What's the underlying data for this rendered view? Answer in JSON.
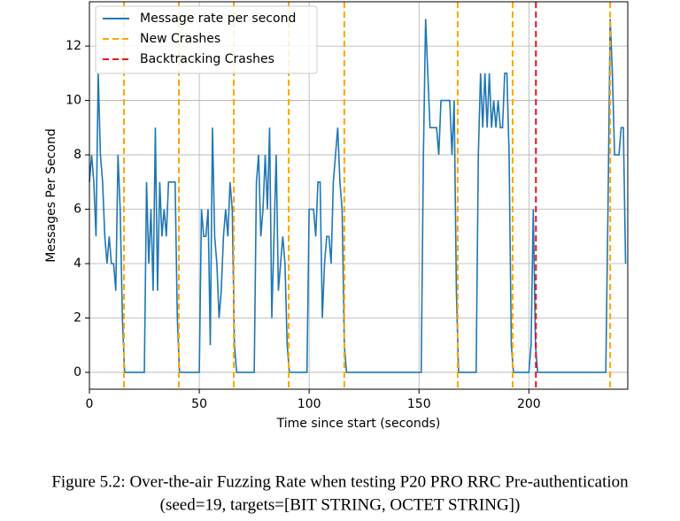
{
  "chart_data": {
    "type": "line",
    "xlabel": "Time since start (seconds)",
    "ylabel": "Messages Per Second",
    "x": [
      0,
      1,
      2,
      3,
      4,
      5,
      6,
      7,
      8,
      9,
      10,
      11,
      12,
      13,
      14,
      15,
      16,
      25,
      26,
      27,
      28,
      29,
      30,
      31,
      32,
      33,
      34,
      35,
      36,
      37,
      38,
      39,
      40,
      41,
      50,
      51,
      52,
      53,
      54,
      55,
      56,
      57,
      58,
      59,
      60,
      61,
      62,
      63,
      64,
      65,
      66,
      67,
      75,
      76,
      77,
      78,
      79,
      80,
      81,
      82,
      83,
      84,
      85,
      86,
      87,
      88,
      89,
      90,
      91,
      99,
      100,
      101,
      102,
      103,
      104,
      105,
      106,
      107,
      108,
      109,
      110,
      111,
      112,
      113,
      114,
      115,
      116,
      117,
      151,
      152,
      153,
      154,
      155,
      156,
      157,
      158,
      159,
      160,
      161,
      162,
      163,
      164,
      165,
      166,
      167,
      168,
      176,
      177,
      178,
      179,
      180,
      181,
      182,
      183,
      184,
      185,
      186,
      187,
      188,
      189,
      190,
      191,
      192,
      193,
      200,
      201,
      202,
      203,
      204,
      235,
      236,
      237,
      238,
      239,
      240,
      241,
      242,
      243,
      244
    ],
    "series": [
      {
        "name": "Message rate per second",
        "color": "#1f77b4",
        "values": [
          7,
          8,
          7,
          5,
          11,
          8,
          7,
          5,
          4,
          5,
          4,
          4,
          3,
          8,
          6,
          2,
          0,
          0,
          7,
          4,
          6,
          3,
          9,
          3,
          7,
          5,
          6,
          5,
          7,
          7,
          7,
          7,
          2,
          0,
          0,
          6,
          5,
          5,
          6,
          1,
          9,
          5,
          4,
          2,
          3,
          5,
          6,
          5,
          7,
          6,
          1,
          0,
          0,
          7,
          8,
          5,
          6,
          8,
          6,
          9,
          2,
          5,
          8,
          3,
          4,
          5,
          4,
          1,
          0,
          0,
          6,
          6,
          6,
          5,
          7,
          7,
          2,
          4,
          5,
          5,
          4,
          7,
          8,
          9,
          7,
          6,
          1,
          0,
          0,
          8,
          13,
          11,
          9,
          9,
          9,
          9,
          8,
          10,
          10,
          10,
          10,
          10,
          8,
          10,
          3,
          0,
          0,
          8,
          11,
          9,
          11,
          9,
          11,
          9,
          10,
          9,
          10,
          9,
          9,
          11,
          11,
          8,
          1,
          0,
          0,
          1,
          6,
          1,
          0,
          0,
          6,
          13,
          11,
          8,
          8,
          8,
          9,
          9,
          4
        ]
      }
    ],
    "vlines": [
      {
        "name": "New Crashes",
        "color": "#ffa500",
        "x": [
          15.7,
          40.7,
          65.7,
          90.7,
          116,
          167.6,
          192.6,
          237
        ]
      },
      {
        "name": "Backtracking Crashes",
        "color": "#e8141e",
        "x": [
          203.2
        ]
      }
    ],
    "xlim": [
      0,
      245
    ],
    "ylim": [
      -0.62,
      13.63
    ],
    "xticks": [
      0,
      50,
      100,
      150,
      200
    ],
    "yticks": [
      0,
      2,
      4,
      6,
      8,
      10,
      12
    ],
    "grid": true,
    "legend": "upper left"
  },
  "caption": [
    "Figure 5.2: Over-the-air Fuzzing Rate when testing P20 PRO RRC Pre-authentication",
    "(seed=19, targets=[BIT STRING, OCTET STRING])"
  ]
}
